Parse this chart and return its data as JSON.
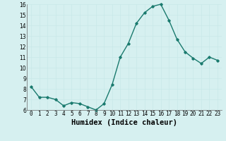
{
  "x": [
    0,
    1,
    2,
    3,
    4,
    5,
    6,
    7,
    8,
    9,
    10,
    11,
    12,
    13,
    14,
    15,
    16,
    17,
    18,
    19,
    20,
    21,
    22,
    23
  ],
  "y": [
    8.2,
    7.2,
    7.2,
    7.0,
    6.4,
    6.7,
    6.6,
    6.3,
    6.0,
    6.6,
    8.4,
    11.0,
    12.3,
    14.2,
    15.2,
    15.8,
    16.0,
    14.5,
    12.7,
    11.5,
    10.9,
    10.4,
    11.0,
    10.7
  ],
  "xlabel": "Humidex (Indice chaleur)",
  "line_color": "#1a7a6e",
  "bg_color": "#d6f0f0",
  "grid_color": "#c8e8e8",
  "ylim": [
    6,
    16
  ],
  "yticks": [
    6,
    7,
    8,
    9,
    10,
    11,
    12,
    13,
    14,
    15,
    16
  ],
  "xtick_labels": [
    "0",
    "1",
    "2",
    "3",
    "4",
    "5",
    "6",
    "7",
    "8",
    "9",
    "10",
    "11",
    "12",
    "13",
    "14",
    "15",
    "16",
    "17",
    "18",
    "19",
    "20",
    "21",
    "22",
    "23"
  ],
  "tick_fontsize": 5.5,
  "xlabel_fontsize": 7.5,
  "marker": "D",
  "marker_size": 1.8,
  "linewidth": 1.0
}
